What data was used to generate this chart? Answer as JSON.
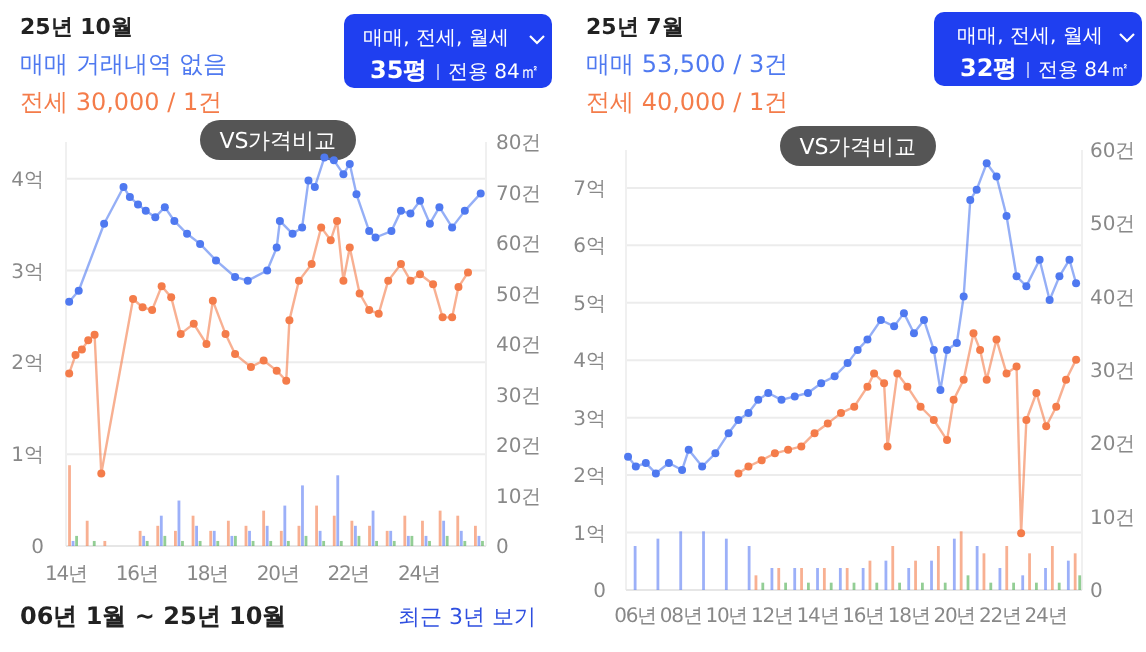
{
  "chart_data": [
    {
      "type": "line",
      "title": "25년 10월",
      "annotations": [
        "매매 거래내역 없음",
        "전세 30,000 / 1건",
        "매매, 전세, 월세",
        "35평",
        "전용 84㎡",
        "VS가격비교",
        "06년 1월 ~ 25년 10월",
        "최근 3년 보기"
      ],
      "xlim": [
        14,
        25.9
      ],
      "xticks": [
        {
          "value": 14,
          "label": "14년"
        },
        {
          "value": 16,
          "label": "16년"
        },
        {
          "value": 18,
          "label": "18년"
        },
        {
          "value": 20,
          "label": "20년"
        },
        {
          "value": 22,
          "label": "22년"
        },
        {
          "value": 24,
          "label": "24년"
        }
      ],
      "ylim": [
        0,
        4.4
      ],
      "yticks": [
        0,
        {
          "value": 1,
          "label": "1억"
        },
        {
          "value": 2,
          "label": "2억"
        },
        {
          "value": 3,
          "label": "3억"
        },
        {
          "value": 4,
          "label": "4억"
        }
      ],
      "y2lim": [
        0,
        80
      ],
      "y2ticks": [
        0,
        {
          "value": 10,
          "label": "10건"
        },
        {
          "value": 20,
          "label": "20건"
        },
        {
          "value": 30,
          "label": "30건"
        },
        {
          "value": 40,
          "label": "40건"
        },
        {
          "value": 50,
          "label": "50건"
        },
        {
          "value": 60,
          "label": "60건"
        },
        {
          "value": 70,
          "label": "70건"
        },
        {
          "value": 80,
          "label": "80건"
        }
      ],
      "grid": "y",
      "marker": "circle",
      "line_style": "solid",
      "series": [
        {
          "color": "#4f79f0",
          "x": [
            14.09,
            14.36,
            15.08,
            15.63,
            15.81,
            16.04,
            16.26,
            16.53,
            16.8,
            17.07,
            17.43,
            17.8,
            18.25,
            18.79,
            19.15,
            19.7,
            19.97,
            20.06,
            20.42,
            20.69,
            20.87,
            21.05,
            21.32,
            21.59,
            21.86,
            22.04,
            22.23,
            22.59,
            22.77,
            23.22,
            23.49,
            23.76,
            24.03,
            24.31,
            24.58,
            24.94,
            25.3,
            25.75
          ],
          "values": [
            2.66,
            2.78,
            3.51,
            3.91,
            3.8,
            3.72,
            3.65,
            3.58,
            3.69,
            3.54,
            3.4,
            3.29,
            3.11,
            2.93,
            2.89,
            3.0,
            3.25,
            3.54,
            3.4,
            3.47,
            3.98,
            3.91,
            4.23,
            4.2,
            4.05,
            4.16,
            3.83,
            3.43,
            3.36,
            3.43,
            3.65,
            3.62,
            3.76,
            3.51,
            3.69,
            3.47,
            3.65,
            3.84
          ]
        },
        {
          "color": "#f47c4a",
          "x": [
            14.09,
            14.27,
            14.45,
            14.63,
            14.81,
            15.0,
            15.9,
            16.17,
            16.44,
            16.71,
            16.98,
            17.25,
            17.62,
            17.98,
            18.16,
            18.52,
            18.79,
            19.24,
            19.6,
            19.97,
            20.24,
            20.33,
            20.6,
            20.96,
            21.23,
            21.5,
            21.68,
            21.86,
            22.04,
            22.32,
            22.59,
            22.86,
            23.13,
            23.49,
            23.76,
            24.03,
            24.4,
            24.67,
            24.94,
            25.12,
            25.39
          ],
          "values": [
            1.88,
            2.08,
            2.14,
            2.24,
            2.3,
            0.79,
            2.69,
            2.6,
            2.57,
            2.83,
            2.71,
            2.31,
            2.42,
            2.2,
            2.67,
            2.31,
            2.09,
            1.95,
            2.02,
            1.91,
            1.8,
            2.46,
            2.89,
            3.07,
            3.47,
            3.33,
            3.54,
            2.89,
            3.25,
            2.75,
            2.57,
            2.53,
            2.89,
            3.07,
            2.89,
            2.96,
            2.85,
            2.49,
            2.49,
            2.82,
            2.98
          ]
        },
        {
          "type": "bar",
          "axis": "y2",
          "color": "#f47c4a",
          "x": [
            14.1,
            14.6,
            15.1,
            15.6,
            16.1,
            16.6,
            17.1,
            17.6,
            18.1,
            18.6,
            19.1,
            19.6,
            20.1,
            20.6,
            21.1,
            21.6,
            22.1,
            22.6,
            23.1,
            23.6,
            24.1,
            24.6,
            25.1,
            25.6
          ],
          "values": [
            16,
            5,
            1,
            0,
            3,
            4,
            3,
            6,
            3,
            5,
            4,
            7,
            3,
            4,
            8,
            6,
            5,
            4,
            3,
            6,
            5,
            7,
            6,
            4
          ]
        },
        {
          "type": "bar",
          "axis": "y2",
          "color": "#5b7cf5",
          "x": [
            14.2,
            14.7,
            15.2,
            15.7,
            16.2,
            16.7,
            17.2,
            17.7,
            18.2,
            18.7,
            19.2,
            19.7,
            20.2,
            20.7,
            21.2,
            21.7,
            22.2,
            22.7,
            23.2,
            23.7,
            24.2,
            24.7,
            25.2,
            25.7
          ],
          "values": [
            1,
            0,
            0,
            0,
            2,
            6,
            9,
            4,
            3,
            2,
            3,
            4,
            8,
            12,
            3,
            14,
            4,
            7,
            3,
            2,
            2,
            5,
            3,
            2
          ]
        },
        {
          "type": "bar",
          "axis": "y2",
          "color": "#4caf50",
          "x": [
            14.3,
            14.8,
            15.3,
            15.8,
            16.3,
            16.8,
            17.3,
            17.8,
            18.3,
            18.8,
            19.3,
            19.8,
            20.3,
            20.8,
            21.3,
            21.8,
            22.3,
            22.8,
            23.3,
            23.8,
            24.3,
            24.8,
            25.3,
            25.8
          ],
          "values": [
            2,
            1,
            0,
            0,
            1,
            2,
            1,
            1,
            1,
            2,
            1,
            1,
            1,
            2,
            1,
            1,
            2,
            1,
            1,
            2,
            1,
            2,
            1,
            1
          ]
        }
      ]
    },
    {
      "type": "line",
      "title": "25년 7월",
      "annotations": [
        "매매 53,500 / 3건",
        "전세 40,000 / 1건",
        "매매, 전세, 월세",
        "32평",
        "전용 84㎡",
        "VS가격비교"
      ],
      "xlim": [
        5.6,
        25.6
      ],
      "xticks": [
        {
          "value": 6,
          "label": "06년"
        },
        {
          "value": 8,
          "label": "08년"
        },
        {
          "value": 10,
          "label": "10년"
        },
        {
          "value": 12,
          "label": "12년"
        },
        {
          "value": 14,
          "label": "14년"
        },
        {
          "value": 16,
          "label": "16년"
        },
        {
          "value": 18,
          "label": "18년"
        },
        {
          "value": 20,
          "label": "20년"
        },
        {
          "value": 22,
          "label": "22년"
        },
        {
          "value": 24,
          "label": "24년"
        }
      ],
      "ylim": [
        0,
        7.66
      ],
      "yticks": [
        0,
        {
          "value": 1,
          "label": "1억"
        },
        {
          "value": 2,
          "label": "2억"
        },
        {
          "value": 3,
          "label": "3억"
        },
        {
          "value": 4,
          "label": "4억"
        },
        {
          "value": 5,
          "label": "5억"
        },
        {
          "value": 6,
          "label": "6억"
        },
        {
          "value": 7,
          "label": "7억"
        }
      ],
      "y2lim": [
        0,
        60
      ],
      "y2ticks": [
        0,
        {
          "value": 10,
          "label": "10건"
        },
        {
          "value": 20,
          "label": "20건"
        },
        {
          "value": 30,
          "label": "30건"
        },
        {
          "value": 40,
          "label": "40건"
        },
        {
          "value": 50,
          "label": "50건"
        },
        {
          "value": 60,
          "label": "60건"
        }
      ],
      "grid": "y",
      "marker": "circle",
      "line_style": "solid",
      "series": [
        {
          "color": "#4f79f0",
          "x": [
            5.69,
            6.03,
            6.47,
            6.91,
            7.48,
            8.06,
            8.35,
            8.94,
            9.52,
            10.1,
            10.53,
            10.97,
            11.4,
            11.84,
            12.42,
            13.0,
            13.58,
            14.16,
            14.75,
            15.32,
            15.76,
            16.19,
            16.78,
            17.36,
            17.79,
            18.23,
            18.67,
            19.1,
            19.39,
            19.68,
            20.11,
            20.41,
            20.7,
            20.98,
            21.42,
            21.85,
            22.29,
            22.73,
            23.16,
            23.74,
            24.18,
            24.61,
            25.05,
            25.34
          ],
          "values": [
            2.32,
            2.15,
            2.21,
            2.03,
            2.21,
            2.09,
            2.44,
            2.15,
            2.38,
            2.73,
            2.96,
            3.08,
            3.31,
            3.43,
            3.31,
            3.37,
            3.43,
            3.6,
            3.72,
            3.95,
            4.18,
            4.36,
            4.7,
            4.59,
            4.82,
            4.47,
            4.7,
            4.18,
            3.48,
            4.18,
            4.3,
            5.11,
            6.79,
            6.97,
            7.43,
            7.2,
            6.51,
            5.46,
            5.29,
            5.75,
            5.05,
            5.46,
            5.75,
            5.34
          ]
        },
        {
          "color": "#f47c4a",
          "x": [
            10.53,
            10.97,
            11.55,
            12.13,
            12.71,
            13.29,
            13.87,
            14.45,
            15.03,
            15.61,
            16.19,
            16.48,
            16.92,
            17.07,
            17.5,
            17.94,
            18.52,
            19.1,
            19.68,
            19.97,
            20.41,
            20.84,
            21.13,
            21.42,
            21.85,
            22.29,
            22.73,
            22.93,
            23.16,
            23.6,
            24.03,
            24.47,
            24.9,
            25.34
          ],
          "values": [
            2.03,
            2.15,
            2.26,
            2.38,
            2.44,
            2.5,
            2.73,
            2.9,
            3.08,
            3.19,
            3.54,
            3.77,
            3.6,
            2.5,
            3.77,
            3.54,
            3.19,
            2.96,
            2.61,
            3.31,
            3.66,
            4.47,
            4.18,
            3.66,
            4.36,
            3.77,
            3.89,
            0.99,
            2.96,
            3.43,
            2.85,
            3.19,
            3.66,
            4.01
          ]
        },
        {
          "type": "bar",
          "axis": "y2",
          "color": "#5b7cf5",
          "x": [
            6,
            7,
            8,
            9,
            10,
            11,
            12,
            13,
            14,
            15,
            16,
            17,
            18,
            19,
            20,
            21,
            22,
            23,
            24,
            25
          ],
          "values": [
            6,
            7,
            8,
            8,
            7,
            6,
            3,
            3,
            3,
            3,
            3,
            4,
            3,
            4,
            7,
            6,
            3,
            2,
            3,
            4
          ]
        },
        {
          "type": "bar",
          "axis": "y2",
          "color": "#f47c4a",
          "x": [
            6.3,
            7.3,
            8.3,
            9.3,
            10.3,
            11.3,
            12.3,
            13.3,
            14.3,
            15.3,
            16.3,
            17.3,
            18.3,
            19.3,
            20.3,
            21.3,
            22.3,
            23.3,
            24.3,
            25.3
          ],
          "values": [
            0,
            0,
            0,
            0,
            0,
            2,
            3,
            3,
            3,
            3,
            4,
            6,
            4,
            6,
            8,
            5,
            6,
            5,
            6,
            5
          ]
        },
        {
          "type": "bar",
          "axis": "y2",
          "color": "#4caf50",
          "x": [
            6.6,
            7.6,
            8.6,
            9.6,
            10.6,
            11.6,
            12.6,
            13.6,
            14.6,
            15.6,
            16.6,
            17.6,
            18.6,
            19.6,
            20.6,
            21.6,
            22.6,
            23.6,
            24.6,
            25.5
          ],
          "values": [
            0,
            0,
            0,
            0,
            0,
            1,
            1,
            1,
            1,
            1,
            1,
            1,
            1,
            1,
            2,
            1,
            1,
            1,
            1,
            2
          ]
        }
      ]
    }
  ]
}
